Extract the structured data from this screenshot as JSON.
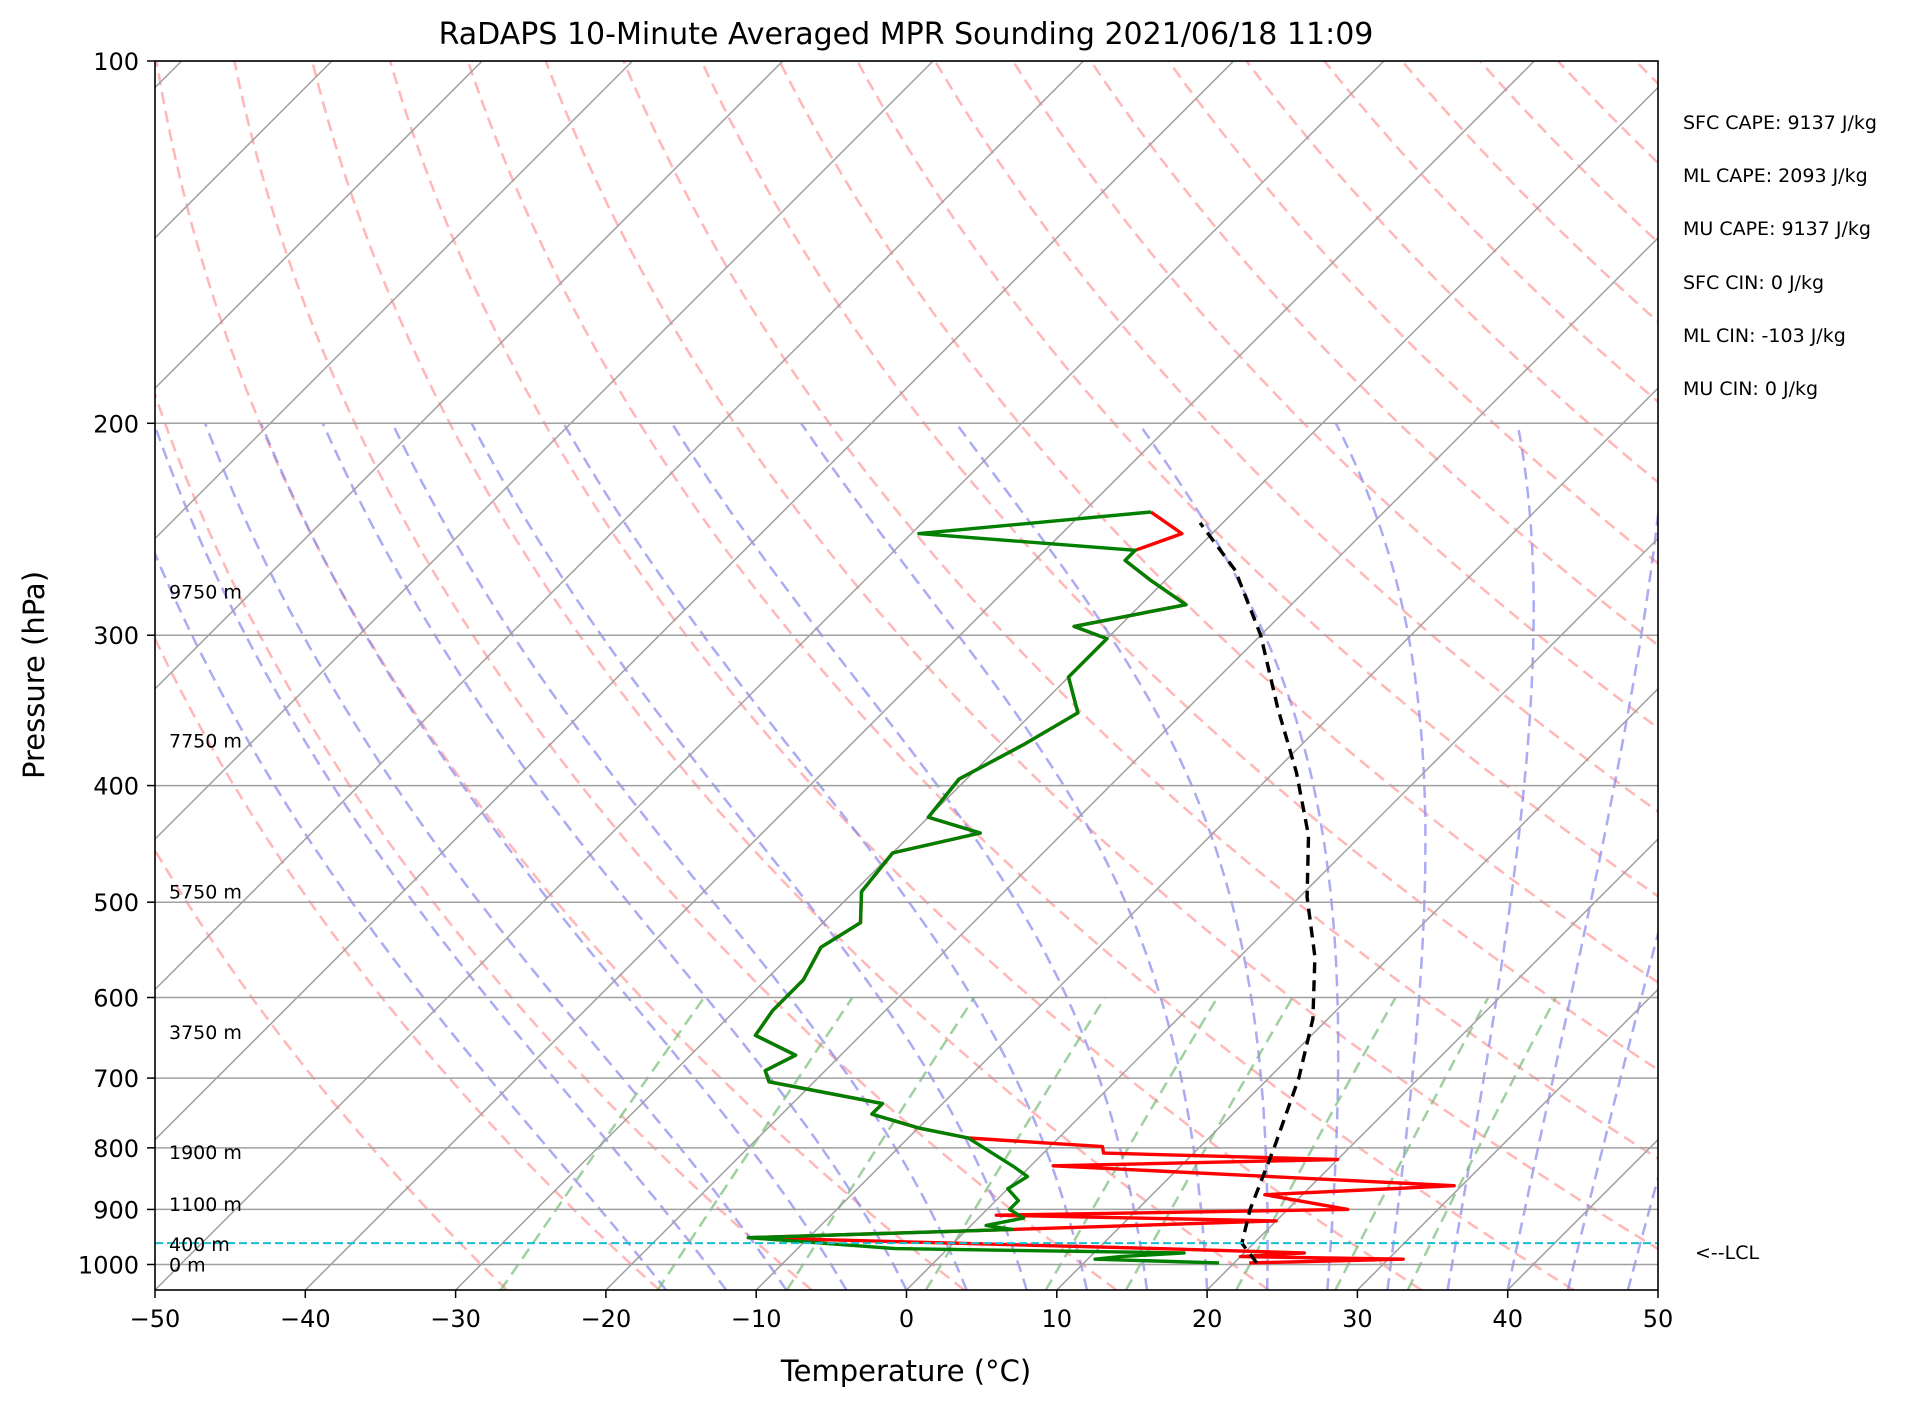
{
  "chart_data": {
    "type": "line",
    "title": "RaDAPS 10-Minute Averaged MPR Sounding 2021/06/18 11:09",
    "xlabel": "Temperature (°C)",
    "ylabel": "Pressure (hPa)",
    "xlim": [
      -50,
      50
    ],
    "ylim": [
      1050,
      100
    ],
    "y_scale": "log",
    "grid": true,
    "x_ticks": [
      -50,
      -40,
      -30,
      -20,
      -10,
      0,
      10,
      20,
      30,
      40,
      50
    ],
    "x_tick_labels": [
      "−50",
      "−40",
      "−30",
      "−20",
      "−10",
      "0",
      "10",
      "20",
      "30",
      "40",
      "50"
    ],
    "y_ticks": [
      100,
      200,
      300,
      400,
      500,
      600,
      700,
      800,
      900,
      1000
    ],
    "y_tick_labels": [
      "100",
      "200",
      "300",
      "400",
      "500",
      "600",
      "700",
      "800",
      "900",
      "1000"
    ],
    "colors": {
      "temperature": "#ff0000",
      "dewpoint": "#008000",
      "parcel": "#000000",
      "isotherm": "#a0a0a0",
      "dry_adiabat": "#ff9999",
      "moist_adiabat": "#8888ee",
      "mixing_ratio": "#77bb77",
      "lcl": "#17becf"
    },
    "series": [
      {
        "name": "",
        "role": "temperature",
        "points": [
          [
            21.0,
            997
          ],
          [
            31.0,
            990
          ],
          [
            20.0,
            985
          ],
          [
            24.0,
            978
          ],
          [
            14.0,
            970
          ],
          [
            -14.0,
            950
          ],
          [
            3.0,
            935
          ],
          [
            20.0,
            920
          ],
          [
            1.0,
            910
          ],
          [
            24.0,
            900
          ],
          [
            17.5,
            875
          ],
          [
            29.5,
            860
          ],
          [
            1.5,
            828
          ],
          [
            20.0,
            818
          ],
          [
            4.0,
            808
          ],
          [
            3.5,
            798
          ],
          [
            -6.0,
            785
          ],
          [
            -10.0,
            770
          ],
          [
            -14.0,
            750
          ],
          [
            -14.0,
            735
          ],
          [
            -23.0,
            705
          ],
          [
            -24.0,
            690
          ],
          [
            -23.0,
            670
          ],
          [
            -27.0,
            645
          ],
          [
            -27.5,
            615
          ],
          [
            -27.5,
            580
          ],
          [
            -28.5,
            545
          ],
          [
            -27.5,
            520
          ],
          [
            -29.5,
            490
          ],
          [
            -30.0,
            455
          ],
          [
            -25.5,
            438
          ],
          [
            -30.0,
            425
          ],
          [
            -30.5,
            395
          ],
          [
            -28.5,
            370
          ],
          [
            -27.0,
            348
          ],
          [
            -30.0,
            325
          ],
          [
            -30.0,
            302
          ],
          [
            -33.0,
            295
          ],
          [
            -27.0,
            283
          ],
          [
            -31.0,
            270
          ],
          [
            -34.0,
            260
          ],
          [
            -34.0,
            255
          ],
          [
            -32.0,
            247
          ],
          [
            -35.5,
            237
          ]
        ]
      },
      {
        "name": "",
        "role": "dewpoint",
        "points": [
          [
            19.0,
            997
          ],
          [
            10.5,
            990
          ],
          [
            12.0,
            985
          ],
          [
            16.0,
            978
          ],
          [
            -3.5,
            970
          ],
          [
            -14.0,
            950
          ],
          [
            3.0,
            935
          ],
          [
            1.0,
            928
          ],
          [
            3.0,
            915
          ],
          [
            1.5,
            900
          ],
          [
            1.5,
            885
          ],
          [
            0.0,
            865
          ],
          [
            0.5,
            845
          ],
          [
            -1.0,
            830
          ],
          [
            -6.0,
            785
          ],
          [
            -10.0,
            770
          ],
          [
            -14.0,
            750
          ],
          [
            -14.0,
            735
          ],
          [
            -23.0,
            705
          ],
          [
            -24.0,
            690
          ],
          [
            -23.0,
            670
          ],
          [
            -27.0,
            645
          ],
          [
            -27.5,
            615
          ],
          [
            -27.5,
            580
          ],
          [
            -28.5,
            545
          ],
          [
            -27.5,
            520
          ],
          [
            -29.5,
            490
          ],
          [
            -30.0,
            455
          ],
          [
            -25.5,
            438
          ],
          [
            -30.0,
            425
          ],
          [
            -30.5,
            395
          ],
          [
            -28.5,
            370
          ],
          [
            -27.0,
            348
          ],
          [
            -30.0,
            325
          ],
          [
            -30.0,
            302
          ],
          [
            -33.0,
            295
          ],
          [
            -27.0,
            283
          ],
          [
            -31.0,
            270
          ],
          [
            -34.0,
            260
          ],
          [
            -34.0,
            255
          ],
          [
            -49.5,
            247
          ],
          [
            -35.5,
            237
          ]
        ]
      },
      {
        "name": "",
        "role": "parcel",
        "points": [
          [
            21.5,
            997
          ],
          [
            19.2,
            960
          ],
          [
            17.5,
            900
          ],
          [
            15.0,
            800
          ],
          [
            12.0,
            700
          ],
          [
            9.0,
            625
          ],
          [
            5.0,
            555
          ],
          [
            0.5,
            495
          ],
          [
            -3.5,
            440
          ],
          [
            -8.5,
            390
          ],
          [
            -14.0,
            345
          ],
          [
            -20.0,
            300
          ],
          [
            -26.0,
            265
          ],
          [
            -31.5,
            242
          ]
        ]
      }
    ],
    "lcl_pressure": 960,
    "height_labels": [
      {
        "text": "9750 m",
        "p": 276
      },
      {
        "text": "7750 m",
        "p": 367
      },
      {
        "text": "5750 m",
        "p": 490
      },
      {
        "text": "3750 m",
        "p": 641
      },
      {
        "text": "1900 m",
        "p": 806
      },
      {
        "text": "1100 m",
        "p": 891
      },
      {
        "text": "400 m",
        "p": 962
      },
      {
        "text": "0 m",
        "p": 1000
      }
    ],
    "annotations": {
      "indices": [
        "SFC CAPE: 9137 J/kg",
        "ML CAPE: 2093 J/kg",
        "MU CAPE: 9137 J/kg",
        "SFC CIN: 0 J/kg",
        "ML CIN: -103 J/kg",
        "MU CIN: 0 J/kg"
      ],
      "lcl_label": "<--LCL"
    }
  }
}
